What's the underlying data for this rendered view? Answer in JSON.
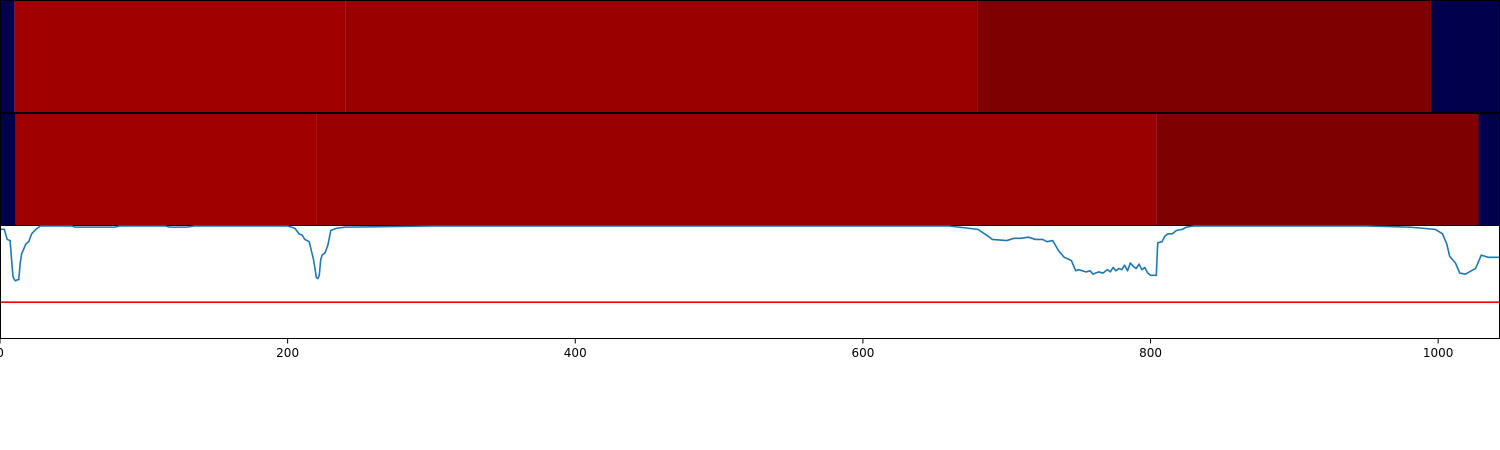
{
  "chart_data": [
    {
      "type": "heatmap",
      "xlim": [
        0,
        1043
      ],
      "segments": [
        {
          "start": 0,
          "end": 10,
          "color": "#00004c"
        },
        {
          "start": 10,
          "end": 240,
          "color": "#a10000"
        },
        {
          "start": 240,
          "end": 680,
          "color": "#990000"
        },
        {
          "start": 680,
          "end": 995,
          "color": "#7e0000"
        },
        {
          "start": 995,
          "end": 1043,
          "color": "#00004c"
        }
      ]
    },
    {
      "type": "heatmap",
      "xlim": [
        0,
        1043
      ],
      "segments": [
        {
          "start": 0,
          "end": 11,
          "color": "#00004c"
        },
        {
          "start": 11,
          "end": 220,
          "color": "#a10000"
        },
        {
          "start": 220,
          "end": 804,
          "color": "#990000"
        },
        {
          "start": 804,
          "end": 1028,
          "color": "#7e0000"
        },
        {
          "start": 1028,
          "end": 1043,
          "color": "#00004c"
        }
      ]
    },
    {
      "type": "line",
      "xlim": [
        0,
        1043
      ],
      "ylim": [
        0,
        1
      ],
      "grid": false,
      "x_ticks": [
        0,
        200,
        400,
        600,
        800,
        1000
      ],
      "x_tick_labels": [
        "0",
        "200",
        "400",
        "600",
        "800",
        "1000"
      ],
      "series": [
        {
          "color": "#1f77b4",
          "points": [
            [
              0,
              0.97
            ],
            [
              3,
              0.97
            ],
            [
              5,
              0.88
            ],
            [
              7,
              0.87
            ],
            [
              9,
              0.55
            ],
            [
              10,
              0.52
            ],
            [
              11,
              0.51
            ],
            [
              12,
              0.52
            ],
            [
              13,
              0.52
            ],
            [
              14,
              0.66
            ],
            [
              15,
              0.75
            ],
            [
              16,
              0.78
            ],
            [
              18,
              0.84
            ],
            [
              20,
              0.86
            ],
            [
              22,
              0.93
            ],
            [
              25,
              0.97
            ],
            [
              28,
              1.0
            ],
            [
              50,
              1.0
            ],
            [
              52,
              0.99
            ],
            [
              60,
              0.99
            ],
            [
              80,
              0.99
            ],
            [
              83,
              1.0
            ],
            [
              115,
              1.0
            ],
            [
              118,
              0.99
            ],
            [
              130,
              0.99
            ],
            [
              135,
              1.0
            ],
            [
              200,
              1.0
            ],
            [
              205,
              0.98
            ],
            [
              208,
              0.93
            ],
            [
              210,
              0.92
            ],
            [
              212,
              0.88
            ],
            [
              215,
              0.86
            ],
            [
              218,
              0.7
            ],
            [
              220,
              0.54
            ],
            [
              221,
              0.53
            ],
            [
              222,
              0.56
            ],
            [
              223,
              0.7
            ],
            [
              224,
              0.74
            ],
            [
              226,
              0.76
            ],
            [
              228,
              0.83
            ],
            [
              230,
              0.96
            ],
            [
              234,
              0.98
            ],
            [
              240,
              0.99
            ],
            [
              300,
              1.0
            ],
            [
              500,
              1.0
            ],
            [
              600,
              1.0
            ],
            [
              660,
              1.0
            ],
            [
              680,
              0.97
            ],
            [
              688,
              0.9
            ],
            [
              690,
              0.88
            ],
            [
              700,
              0.87
            ],
            [
              705,
              0.89
            ],
            [
              710,
              0.89
            ],
            [
              715,
              0.9
            ],
            [
              720,
              0.88
            ],
            [
              725,
              0.88
            ],
            [
              728,
              0.86
            ],
            [
              732,
              0.87
            ],
            [
              736,
              0.78
            ],
            [
              740,
              0.72
            ],
            [
              742,
              0.71
            ],
            [
              745,
              0.69
            ],
            [
              748,
              0.6
            ],
            [
              750,
              0.61
            ],
            [
              755,
              0.59
            ],
            [
              758,
              0.6
            ],
            [
              760,
              0.57
            ],
            [
              764,
              0.59
            ],
            [
              767,
              0.58
            ],
            [
              770,
              0.61
            ],
            [
              772,
              0.59
            ],
            [
              774,
              0.63
            ],
            [
              776,
              0.6
            ],
            [
              778,
              0.62
            ],
            [
              780,
              0.61
            ],
            [
              782,
              0.65
            ],
            [
              784,
              0.6
            ],
            [
              786,
              0.67
            ],
            [
              788,
              0.64
            ],
            [
              790,
              0.62
            ],
            [
              792,
              0.66
            ],
            [
              794,
              0.61
            ],
            [
              796,
              0.63
            ],
            [
              798,
              0.58
            ],
            [
              800,
              0.56
            ],
            [
              802,
              0.56
            ],
            [
              804,
              0.56
            ],
            [
              805,
              0.85
            ],
            [
              808,
              0.86
            ],
            [
              810,
              0.91
            ],
            [
              812,
              0.93
            ],
            [
              815,
              0.93
            ],
            [
              818,
              0.96
            ],
            [
              822,
              0.97
            ],
            [
              825,
              0.99
            ],
            [
              830,
              1.0
            ],
            [
              950,
              1.0
            ],
            [
              980,
              0.99
            ],
            [
              998,
              0.97
            ],
            [
              1003,
              0.93
            ],
            [
              1006,
              0.84
            ],
            [
              1008,
              0.73
            ],
            [
              1012,
              0.67
            ],
            [
              1015,
              0.58
            ],
            [
              1019,
              0.57
            ],
            [
              1023,
              0.6
            ],
            [
              1026,
              0.62
            ],
            [
              1030,
              0.74
            ],
            [
              1035,
              0.72
            ],
            [
              1043,
              0.72
            ]
          ]
        },
        {
          "color": "#ff0000",
          "points": [
            [
              0,
              0.32
            ],
            [
              1043,
              0.32
            ]
          ]
        }
      ]
    }
  ]
}
